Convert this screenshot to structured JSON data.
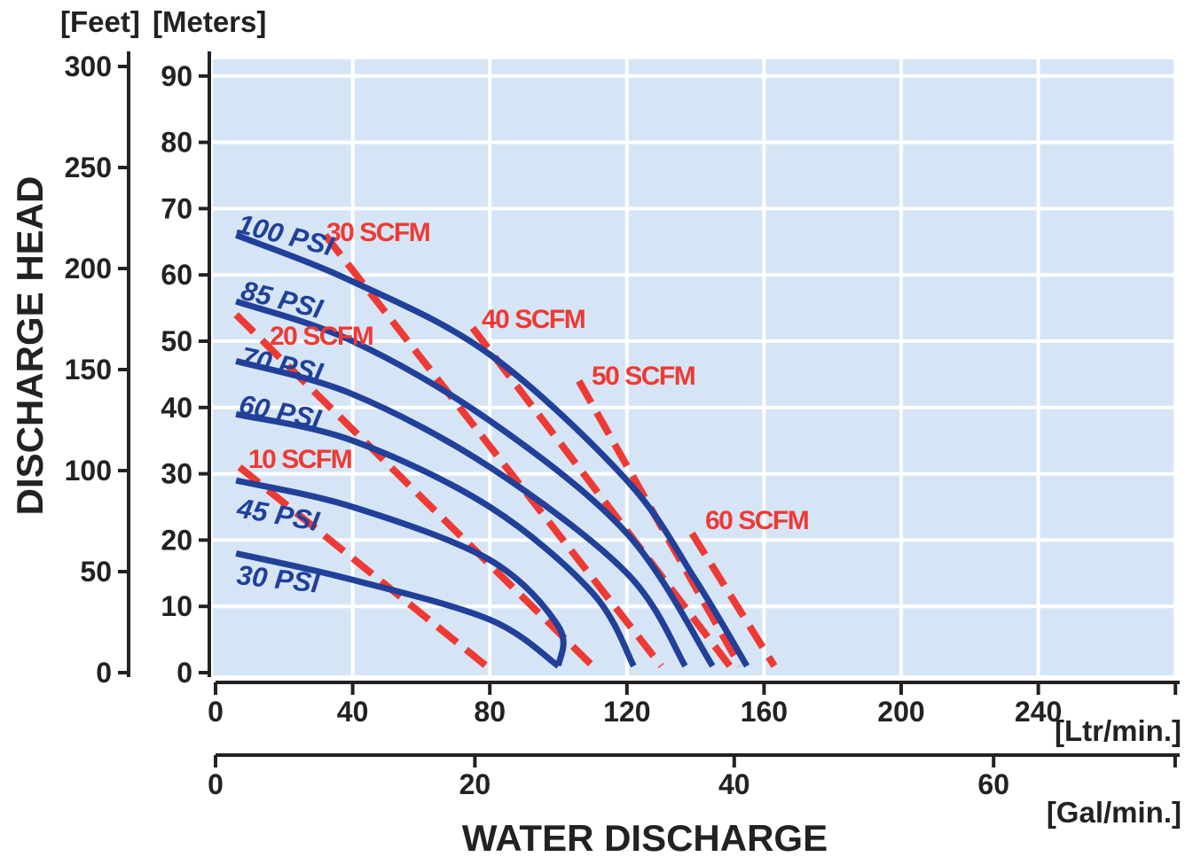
{
  "chart_data": {
    "type": "line",
    "title": "",
    "xlabel": "WATER DISCHARGE",
    "ylabel": "DISCHARGE HEAD",
    "grid": true,
    "x_axis_primary": {
      "unit": "[Ltr/min.]",
      "range": [
        0,
        280
      ],
      "ticks": [
        0,
        40,
        80,
        120,
        160,
        200,
        240
      ]
    },
    "x_axis_secondary": {
      "unit": "[Gal/min.]",
      "range": [
        0,
        74
      ],
      "ticks": [
        0,
        20,
        40,
        60
      ]
    },
    "y_axis_primary": {
      "unit": "[Meters]",
      "range": [
        0,
        93
      ],
      "ticks": [
        0,
        10,
        20,
        30,
        40,
        50,
        60,
        70,
        80,
        90
      ]
    },
    "y_axis_secondary": {
      "unit": "[Feet]",
      "range": [
        0,
        305
      ],
      "ticks": [
        0,
        50,
        100,
        150,
        200,
        250,
        300
      ]
    },
    "pressure_series": [
      {
        "name": "100 PSI",
        "points": [
          [
            6,
            66
          ],
          [
            40,
            59
          ],
          [
            80,
            48
          ],
          [
            120,
            29
          ],
          [
            140,
            14
          ],
          [
            155,
            1
          ]
        ]
      },
      {
        "name": "85 PSI",
        "points": [
          [
            6,
            56
          ],
          [
            40,
            50
          ],
          [
            80,
            38
          ],
          [
            120,
            21
          ],
          [
            145,
            1
          ]
        ]
      },
      {
        "name": "70 PSI",
        "points": [
          [
            6,
            47
          ],
          [
            40,
            42
          ],
          [
            80,
            31
          ],
          [
            120,
            15
          ],
          [
            137,
            1
          ]
        ]
      },
      {
        "name": "60 PSI",
        "points": [
          [
            6,
            39
          ],
          [
            40,
            35
          ],
          [
            80,
            25
          ],
          [
            110,
            12
          ],
          [
            122,
            1
          ]
        ]
      },
      {
        "name": "45 PSI",
        "points": [
          [
            6,
            29
          ],
          [
            40,
            25
          ],
          [
            80,
            17
          ],
          [
            100,
            7
          ],
          [
            100,
            1
          ]
        ]
      },
      {
        "name": "30 PSI",
        "points": [
          [
            6,
            18
          ],
          [
            40,
            14
          ],
          [
            80,
            8
          ],
          [
            100,
            1
          ]
        ]
      }
    ],
    "air_consumption_series": [
      {
        "name": "10 SCFM",
        "points": [
          [
            7,
            31
          ],
          [
            79,
            1
          ]
        ]
      },
      {
        "name": "20 SCFM",
        "points": [
          [
            6,
            54
          ],
          [
            110,
            1
          ]
        ]
      },
      {
        "name": "30 SCFM",
        "points": [
          [
            32,
            66
          ],
          [
            130,
            1
          ]
        ]
      },
      {
        "name": "40 SCFM",
        "points": [
          [
            75,
            52
          ],
          [
            150,
            1
          ]
        ]
      },
      {
        "name": "50 SCFM",
        "points": [
          [
            106,
            44
          ],
          [
            153,
            1
          ]
        ]
      },
      {
        "name": "60 SCFM",
        "points": [
          [
            139,
            21
          ],
          [
            163,
            1
          ]
        ]
      }
    ]
  }
}
